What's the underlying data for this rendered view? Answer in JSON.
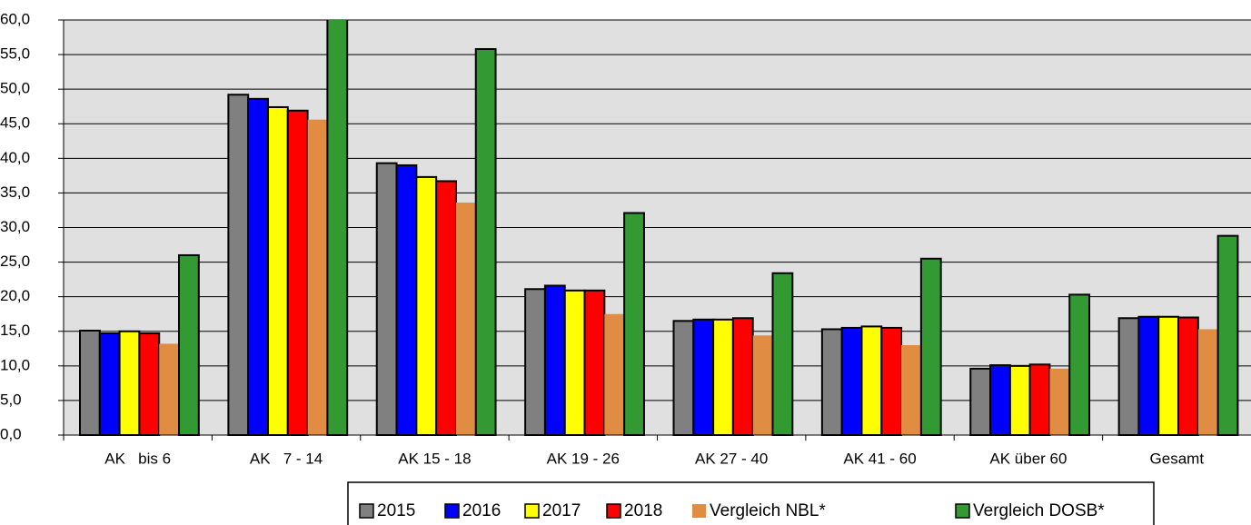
{
  "chart_data": {
    "type": "bar",
    "categories": [
      "AK   bis 6",
      "AK   7 - 14",
      "AK 15 - 18",
      "AK 19 - 26",
      "AK 27 - 40",
      "AK 41 - 60",
      "AK über 60",
      "Gesamt"
    ],
    "series": [
      {
        "name": "2015",
        "color": "#808080",
        "values": [
          15.1,
          49.2,
          39.3,
          21.1,
          16.5,
          15.3,
          9.6,
          16.9
        ]
      },
      {
        "name": "2016",
        "color": "#0000ff",
        "values": [
          14.7,
          48.6,
          39.0,
          21.6,
          16.7,
          15.5,
          10.1,
          17.1
        ]
      },
      {
        "name": "2017",
        "color": "#ffff00",
        "values": [
          15.0,
          47.4,
          37.3,
          20.9,
          16.7,
          15.7,
          10.0,
          17.1
        ]
      },
      {
        "name": "2018",
        "color": "#ff0000",
        "values": [
          14.7,
          46.9,
          36.7,
          20.9,
          16.9,
          15.5,
          10.2,
          17.0
        ]
      },
      {
        "name": "Vergleich NBL*",
        "color": "#e08c42",
        "values": [
          13.2,
          45.6,
          33.6,
          17.5,
          14.4,
          13.0,
          9.6,
          15.3
        ]
      },
      {
        "name": "Vergleich DOSB*",
        "color": "#339933",
        "values": [
          26.0,
          62.0,
          55.8,
          32.1,
          23.4,
          25.5,
          20.3,
          28.8
        ]
      }
    ],
    "ylim": [
      0,
      60
    ],
    "yticks": [
      {
        "value": 0,
        "label": "0,0"
      },
      {
        "value": 5,
        "label": "5,0"
      },
      {
        "value": 10,
        "label": "10,0"
      },
      {
        "value": 15,
        "label": "15,0"
      },
      {
        "value": 20,
        "label": "20,0"
      },
      {
        "value": 25,
        "label": "25,0"
      },
      {
        "value": 30,
        "label": "30,0"
      },
      {
        "value": 35,
        "label": "35,0"
      },
      {
        "value": 40,
        "label": "40,0"
      },
      {
        "value": 45,
        "label": "45,0"
      },
      {
        "value": 50,
        "label": "50,0"
      },
      {
        "value": 55,
        "label": "55,0"
      },
      {
        "value": 60,
        "label": "60,0"
      }
    ],
    "grid": true
  }
}
